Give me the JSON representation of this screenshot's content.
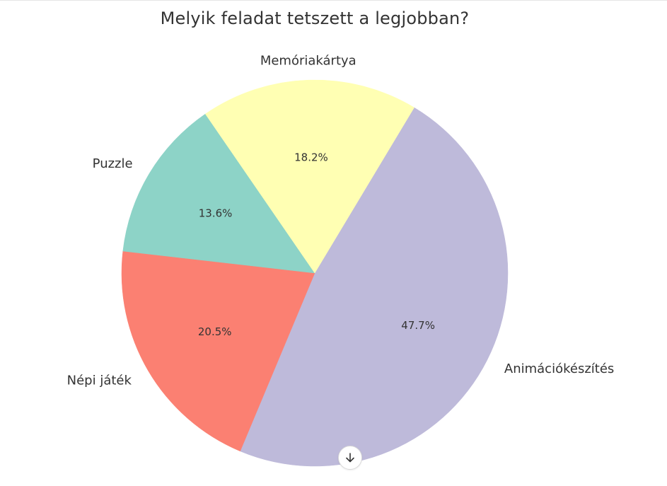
{
  "chart_data": {
    "type": "pie",
    "title": "Melyik feladat tetszett a legjobban?",
    "slices": [
      {
        "label": "Animációkészítés",
        "value": 47.7,
        "pct_label": "47.7%",
        "color": "#bebada"
      },
      {
        "label": "Népi játék",
        "value": 20.5,
        "pct_label": "20.5%",
        "color": "#fb8072"
      },
      {
        "label": "Puzzle",
        "value": 13.6,
        "pct_label": "13.6%",
        "color": "#8dd3c7"
      },
      {
        "label": "Memóriakártya",
        "value": 18.2,
        "pct_label": "18.2%",
        "color": "#ffffb3"
      }
    ]
  },
  "scroll_button": {
    "icon": "arrow-down-icon"
  }
}
